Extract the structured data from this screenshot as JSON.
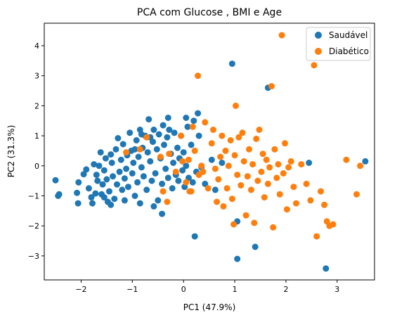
{
  "chart_data": {
    "type": "scatter",
    "title": "PCA com Glucose , BMI e Age",
    "xlabel": "PC1 (47.9%)",
    "ylabel": "PC2 (31.3%)",
    "xlim": [
      -2.72,
      3.73
    ],
    "ylim": [
      -3.8,
      4.75
    ],
    "xticks": [
      -2,
      -1,
      0,
      1,
      2,
      3
    ],
    "yticks": [
      -3,
      -2,
      -1,
      0,
      1,
      2,
      3,
      4
    ],
    "grid": false,
    "legend_position": "top-right",
    "series": [
      {
        "name": "Saudável",
        "color": "#1f77b4",
        "points": [
          [
            -2.5,
            -0.48
          ],
          [
            -2.45,
            -1.0
          ],
          [
            -2.43,
            -0.95
          ],
          [
            -2.05,
            -0.55
          ],
          [
            -2.08,
            -0.9
          ],
          [
            -2.06,
            -1.25
          ],
          [
            -1.95,
            -0.28
          ],
          [
            -1.9,
            -0.12
          ],
          [
            -1.85,
            -0.75
          ],
          [
            -1.8,
            -1.05
          ],
          [
            -1.78,
            -1.25
          ],
          [
            -1.75,
            0.05
          ],
          [
            -1.7,
            -0.3
          ],
          [
            -1.68,
            -0.5
          ],
          [
            -1.65,
            0.0
          ],
          [
            -1.62,
            0.45
          ],
          [
            -1.6,
            -0.95
          ],
          [
            -1.58,
            -0.62
          ],
          [
            -1.55,
            -0.15
          ],
          [
            -1.52,
            0.25
          ],
          [
            -1.5,
            -0.45
          ],
          [
            -1.48,
            -1.2
          ],
          [
            -1.45,
            -0.85
          ],
          [
            -1.42,
            0.38
          ],
          [
            -1.4,
            0.1
          ],
          [
            -1.38,
            -0.35
          ],
          [
            -1.35,
            -1.1
          ],
          [
            -1.32,
            0.55
          ],
          [
            -1.3,
            -0.62
          ],
          [
            -1.28,
            0.92
          ],
          [
            -1.25,
            -0.2
          ],
          [
            -1.22,
            0.2
          ],
          [
            -1.2,
            -0.8
          ],
          [
            -1.18,
            0.72
          ],
          [
            -1.15,
            -0.42
          ],
          [
            -1.12,
            -0.1
          ],
          [
            -1.1,
            0.35
          ],
          [
            -1.08,
            -0.7
          ],
          [
            -1.05,
            1.1
          ],
          [
            -1.02,
            0.5
          ],
          [
            -1.0,
            -0.25
          ],
          [
            -0.98,
            0.1
          ],
          [
            -0.95,
            -1.0
          ],
          [
            -0.92,
            0.85
          ],
          [
            -0.9,
            -0.55
          ],
          [
            -0.88,
            0.3
          ],
          [
            -0.85,
            1.2
          ],
          [
            -0.82,
            -0.05
          ],
          [
            -0.8,
            0.6
          ],
          [
            -0.78,
            -0.35
          ],
          [
            -0.75,
            1.0
          ],
          [
            -0.72,
            -0.8
          ],
          [
            -0.7,
            0.45
          ],
          [
            -0.68,
            1.55
          ],
          [
            -0.65,
            0.15
          ],
          [
            -0.62,
            -0.5
          ],
          [
            -0.6,
            0.8
          ],
          [
            -0.58,
            1.2
          ],
          [
            -0.55,
            -0.25
          ],
          [
            -0.52,
            0.55
          ],
          [
            -0.5,
            -1.15
          ],
          [
            -0.48,
            1.05
          ],
          [
            -0.45,
            0.25
          ],
          [
            -0.42,
            -0.6
          ],
          [
            -0.4,
            1.35
          ],
          [
            -0.38,
            0.7
          ],
          [
            -0.35,
            -0.1
          ],
          [
            -0.32,
            0.95
          ],
          [
            -0.3,
            -0.4
          ],
          [
            -0.28,
            1.2
          ],
          [
            -0.25,
            0.4
          ],
          [
            -0.22,
            -0.75
          ],
          [
            -0.2,
            0.1
          ],
          [
            -0.18,
            1.1
          ],
          [
            -0.15,
            -0.3
          ],
          [
            -0.12,
            0.6
          ],
          [
            -0.1,
            -0.5
          ],
          [
            -0.08,
            0.25
          ],
          [
            -0.05,
            1.0
          ],
          [
            -0.02,
            -0.15
          ],
          [
            0.0,
            0.45
          ],
          [
            0.02,
            -0.7
          ],
          [
            0.05,
            0.0
          ],
          [
            0.08,
            1.3
          ],
          [
            0.1,
            -0.4
          ],
          [
            0.15,
            0.7
          ],
          [
            0.18,
            -0.55
          ],
          [
            0.2,
            1.5
          ],
          [
            0.25,
            -0.2
          ],
          [
            0.3,
            1.0
          ],
          [
            -0.42,
            -1.6
          ],
          [
            -0.58,
            -1.35
          ],
          [
            -0.85,
            -1.25
          ],
          [
            -1.15,
            -1.15
          ],
          [
            -1.42,
            -1.3
          ],
          [
            -1.55,
            -1.05
          ],
          [
            -1.72,
            -0.92
          ],
          [
            0.35,
            -0.05
          ],
          [
            0.42,
            -0.6
          ],
          [
            0.55,
            0.2
          ],
          [
            0.62,
            -0.8
          ],
          [
            0.75,
            0.1
          ],
          [
            0.22,
            -2.35
          ],
          [
            0.95,
            3.4
          ],
          [
            1.05,
            -3.1
          ],
          [
            1.05,
            -1.85
          ],
          [
            1.4,
            -2.7
          ],
          [
            1.65,
            2.6
          ],
          [
            2.45,
            0.1
          ],
          [
            2.78,
            -3.42
          ],
          [
            3.55,
            0.15
          ],
          [
            -0.3,
            1.6
          ],
          [
            0.05,
            1.6
          ],
          [
            0.28,
            1.75
          ],
          [
            -0.82,
            1.05
          ],
          [
            -0.65,
            0.95
          ],
          [
            -0.95,
            0.55
          ]
        ]
      },
      {
        "name": "Diabético",
        "color": "#ff7f0e",
        "points": [
          [
            -1.12,
            0.45
          ],
          [
            -0.85,
            0.55
          ],
          [
            -0.72,
            0.95
          ],
          [
            -0.45,
            0.3
          ],
          [
            -0.4,
            -0.85
          ],
          [
            -0.32,
            -1.2
          ],
          [
            -0.28,
            0.4
          ],
          [
            -0.15,
            -0.2
          ],
          [
            -0.05,
            1.0
          ],
          [
            -0.02,
            0.15
          ],
          [
            0.05,
            -0.55
          ],
          [
            0.1,
            0.2
          ],
          [
            0.15,
            -0.85
          ],
          [
            0.18,
            1.3
          ],
          [
            0.22,
            0.5
          ],
          [
            0.28,
            3.0
          ],
          [
            0.3,
            -0.3
          ],
          [
            0.35,
            0.0
          ],
          [
            0.42,
            1.45
          ],
          [
            0.48,
            -0.75
          ],
          [
            0.55,
            0.75
          ],
          [
            0.58,
            1.2
          ],
          [
            0.62,
            -0.1
          ],
          [
            0.68,
            -0.45
          ],
          [
            0.72,
            0.3
          ],
          [
            0.75,
            1.0
          ],
          [
            0.78,
            -1.35
          ],
          [
            0.82,
            0.5
          ],
          [
            0.85,
            -0.75
          ],
          [
            0.88,
            0.0
          ],
          [
            0.92,
            0.85
          ],
          [
            0.95,
            -1.1
          ],
          [
            1.0,
            0.35
          ],
          [
            1.02,
            2.0
          ],
          [
            1.05,
            -0.3
          ],
          [
            1.08,
            0.95
          ],
          [
            1.12,
            -0.65
          ],
          [
            1.15,
            1.1
          ],
          [
            1.18,
            0.15
          ],
          [
            1.22,
            -1.65
          ],
          [
            1.25,
            -0.35
          ],
          [
            1.28,
            0.55
          ],
          [
            1.32,
            -0.8
          ],
          [
            1.35,
            0.05
          ],
          [
            1.38,
            -1.9
          ],
          [
            1.42,
            0.9
          ],
          [
            1.45,
            -0.5
          ],
          [
            1.48,
            1.2
          ],
          [
            1.52,
            -0.2
          ],
          [
            1.55,
            0.4
          ],
          [
            1.58,
            -1.05
          ],
          [
            1.62,
            0.2
          ],
          [
            1.65,
            -0.6
          ],
          [
            1.68,
            -0.05
          ],
          [
            1.72,
            2.65
          ],
          [
            1.75,
            -2.05
          ],
          [
            1.78,
            0.55
          ],
          [
            1.82,
            -0.4
          ],
          [
            1.85,
            0.05
          ],
          [
            1.88,
            -0.95
          ],
          [
            1.92,
            4.35
          ],
          [
            1.95,
            -0.25
          ],
          [
            1.98,
            0.75
          ],
          [
            2.02,
            -1.45
          ],
          [
            2.05,
            -0.05
          ],
          [
            2.1,
            0.15
          ],
          [
            2.15,
            -0.7
          ],
          [
            2.2,
            -1.25
          ],
          [
            2.3,
            0.05
          ],
          [
            2.4,
            -0.6
          ],
          [
            2.48,
            -1.15
          ],
          [
            2.55,
            3.35
          ],
          [
            2.6,
            -2.35
          ],
          [
            2.68,
            -0.85
          ],
          [
            2.75,
            -1.3
          ],
          [
            2.8,
            -1.85
          ],
          [
            2.85,
            -2.0
          ],
          [
            2.92,
            -1.95
          ],
          [
            3.18,
            0.2
          ],
          [
            3.38,
            -0.95
          ],
          [
            3.45,
            0.0
          ],
          [
            0.98,
            -1.95
          ],
          [
            0.65,
            -1.2
          ],
          [
            0.38,
            -0.2
          ],
          [
            0.12,
            -0.85
          ]
        ]
      }
    ]
  }
}
